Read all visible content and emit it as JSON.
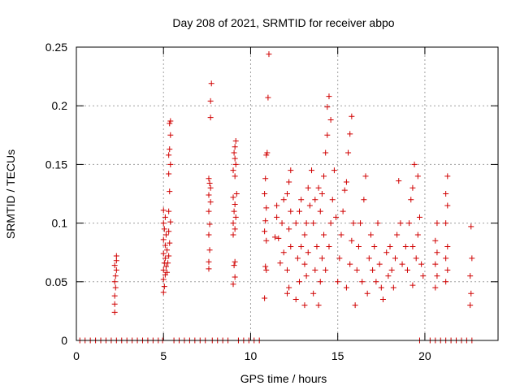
{
  "chart_data": {
    "type": "scatter",
    "title": "Day 208 of 2021, SRMTID for receiver abpo",
    "xlabel": "GPS time / hours",
    "ylabel": "SRMTID / TECUs",
    "xlim": [
      0,
      24.2
    ],
    "ylim": [
      0,
      0.25
    ],
    "xticks": [
      0,
      5,
      10,
      15,
      20
    ],
    "xtick_labels": [
      "0",
      "5",
      "10",
      "15",
      "20"
    ],
    "yticks": [
      0,
      0.05,
      0.1,
      0.15,
      0.2,
      0.25
    ],
    "ytick_labels": [
      "0",
      "0.05",
      "0.1",
      "0.15",
      "0.2",
      "0.25"
    ],
    "grid": true,
    "marker": "+",
    "color": "#d00000",
    "series": [
      {
        "name": "SRMTID",
        "points": [
          [
            0.2,
            0
          ],
          [
            0.5,
            0
          ],
          [
            0.8,
            0
          ],
          [
            1.1,
            0
          ],
          [
            1.4,
            0
          ],
          [
            1.7,
            0
          ],
          [
            2.0,
            0
          ],
          [
            2.3,
            0
          ],
          [
            2.6,
            0
          ],
          [
            2.9,
            0
          ],
          [
            3.2,
            0
          ],
          [
            3.5,
            0
          ],
          [
            3.8,
            0
          ],
          [
            4.1,
            0
          ],
          [
            4.4,
            0
          ],
          [
            4.7,
            0
          ],
          [
            4.95,
            0
          ],
          [
            5.6,
            0
          ],
          [
            5.9,
            0
          ],
          [
            6.2,
            0
          ],
          [
            6.5,
            0
          ],
          [
            6.8,
            0
          ],
          [
            7.1,
            0
          ],
          [
            7.4,
            0
          ],
          [
            7.8,
            0
          ],
          [
            8.1,
            0
          ],
          [
            8.4,
            0
          ],
          [
            8.7,
            0
          ],
          [
            9.3,
            0
          ],
          [
            9.6,
            0
          ],
          [
            9.9,
            0
          ],
          [
            10.2,
            0
          ],
          [
            10.5,
            0
          ],
          [
            19.7,
            0
          ],
          [
            20.3,
            0
          ],
          [
            20.6,
            0
          ],
          [
            20.9,
            0
          ],
          [
            21.2,
            0
          ],
          [
            21.5,
            0
          ],
          [
            21.8,
            0
          ],
          [
            22.1,
            0
          ],
          [
            22.4,
            0
          ],
          [
            22.7,
            0
          ],
          [
            2.2,
            0.024
          ],
          [
            2.2,
            0.031
          ],
          [
            2.2,
            0.038
          ],
          [
            2.25,
            0.045
          ],
          [
            2.2,
            0.05
          ],
          [
            2.25,
            0.055
          ],
          [
            2.3,
            0.06
          ],
          [
            2.2,
            0.064
          ],
          [
            2.3,
            0.068
          ],
          [
            2.3,
            0.072
          ],
          [
            5.0,
            0.041
          ],
          [
            5.05,
            0.046
          ],
          [
            5.0,
            0.052
          ],
          [
            5.1,
            0.056
          ],
          [
            5.0,
            0.06
          ],
          [
            5.15,
            0.063
          ],
          [
            5.05,
            0.066
          ],
          [
            5.1,
            0.07
          ],
          [
            5.0,
            0.074
          ],
          [
            5.2,
            0.077
          ],
          [
            5.1,
            0.081
          ],
          [
            5.0,
            0.086
          ],
          [
            5.15,
            0.09
          ],
          [
            5.05,
            0.095
          ],
          [
            5.0,
            0.1
          ],
          [
            5.1,
            0.105
          ],
          [
            5.0,
            0.111
          ],
          [
            5.3,
            0.072
          ],
          [
            5.35,
            0.083
          ],
          [
            5.3,
            0.093
          ],
          [
            5.4,
            0.101
          ],
          [
            5.3,
            0.11
          ],
          [
            5.35,
            0.127
          ],
          [
            5.3,
            0.142
          ],
          [
            5.4,
            0.15
          ],
          [
            5.3,
            0.158
          ],
          [
            5.35,
            0.163
          ],
          [
            5.4,
            0.175
          ],
          [
            5.35,
            0.185
          ],
          [
            5.4,
            0.187
          ],
          [
            5.25,
            0.066
          ],
          [
            5.2,
            0.058
          ],
          [
            7.6,
            0.061
          ],
          [
            7.6,
            0.067
          ],
          [
            7.65,
            0.077
          ],
          [
            7.6,
            0.09
          ],
          [
            7.65,
            0.099
          ],
          [
            7.6,
            0.11
          ],
          [
            7.7,
            0.118
          ],
          [
            7.6,
            0.124
          ],
          [
            7.7,
            0.13
          ],
          [
            7.65,
            0.134
          ],
          [
            7.6,
            0.138
          ],
          [
            7.7,
            0.19
          ],
          [
            7.7,
            0.204
          ],
          [
            7.75,
            0.219
          ],
          [
            9.0,
            0.048
          ],
          [
            9.1,
            0.054
          ],
          [
            9.05,
            0.064
          ],
          [
            9.1,
            0.067
          ],
          [
            9.0,
            0.09
          ],
          [
            9.1,
            0.095
          ],
          [
            9.0,
            0.1
          ],
          [
            9.15,
            0.105
          ],
          [
            9.05,
            0.11
          ],
          [
            9.1,
            0.116
          ],
          [
            9.0,
            0.122
          ],
          [
            9.2,
            0.125
          ],
          [
            9.1,
            0.14
          ],
          [
            9.0,
            0.145
          ],
          [
            9.15,
            0.15
          ],
          [
            9.1,
            0.155
          ],
          [
            9.05,
            0.16
          ],
          [
            9.1,
            0.165
          ],
          [
            9.15,
            0.17
          ],
          [
            10.8,
            0.036
          ],
          [
            10.9,
            0.06
          ],
          [
            10.85,
            0.063
          ],
          [
            10.9,
            0.085
          ],
          [
            10.8,
            0.093
          ],
          [
            10.85,
            0.102
          ],
          [
            10.9,
            0.113
          ],
          [
            10.8,
            0.125
          ],
          [
            10.85,
            0.138
          ],
          [
            10.9,
            0.158
          ],
          [
            10.95,
            0.16
          ],
          [
            11.0,
            0.207
          ],
          [
            11.05,
            0.244
          ],
          [
            11.4,
            0.088
          ],
          [
            11.6,
            0.087
          ],
          [
            11.5,
            0.105
          ],
          [
            11.5,
            0.115
          ],
          [
            11.7,
            0.066
          ],
          [
            11.9,
            0.075
          ],
          [
            11.8,
            0.1
          ],
          [
            11.9,
            0.12
          ],
          [
            12.1,
            0.04
          ],
          [
            12.2,
            0.045
          ],
          [
            12.1,
            0.06
          ],
          [
            12.3,
            0.08
          ],
          [
            12.2,
            0.095
          ],
          [
            12.3,
            0.11
          ],
          [
            12.1,
            0.125
          ],
          [
            12.2,
            0.135
          ],
          [
            12.3,
            0.145
          ],
          [
            12.6,
            0.035
          ],
          [
            12.8,
            0.05
          ],
          [
            12.7,
            0.07
          ],
          [
            12.9,
            0.08
          ],
          [
            12.6,
            0.1
          ],
          [
            12.8,
            0.11
          ],
          [
            12.9,
            0.12
          ],
          [
            13.1,
            0.03
          ],
          [
            13.2,
            0.055
          ],
          [
            13.1,
            0.065
          ],
          [
            13.3,
            0.075
          ],
          [
            13.1,
            0.09
          ],
          [
            13.2,
            0.1
          ],
          [
            13.4,
            0.115
          ],
          [
            13.3,
            0.13
          ],
          [
            13.5,
            0.145
          ],
          [
            13.6,
            0.04
          ],
          [
            13.7,
            0.06
          ],
          [
            13.8,
            0.08
          ],
          [
            13.6,
            0.1
          ],
          [
            13.7,
            0.12
          ],
          [
            13.9,
            0.13
          ],
          [
            13.9,
            0.03
          ],
          [
            14.0,
            0.05
          ],
          [
            14.1,
            0.07
          ],
          [
            14.2,
            0.09
          ],
          [
            14.0,
            0.11
          ],
          [
            14.1,
            0.125
          ],
          [
            14.2,
            0.14
          ],
          [
            14.3,
            0.16
          ],
          [
            14.4,
            0.175
          ],
          [
            14.4,
            0.199
          ],
          [
            14.5,
            0.208
          ],
          [
            14.6,
            0.188
          ],
          [
            14.3,
            0.06
          ],
          [
            14.5,
            0.08
          ],
          [
            14.6,
            0.1
          ],
          [
            14.7,
            0.12
          ],
          [
            14.8,
            0.145
          ],
          [
            14.9,
            0.105
          ],
          [
            15.0,
            0.05
          ],
          [
            15.1,
            0.07
          ],
          [
            15.2,
            0.09
          ],
          [
            15.3,
            0.11
          ],
          [
            15.4,
            0.128
          ],
          [
            15.5,
            0.135
          ],
          [
            15.6,
            0.16
          ],
          [
            15.7,
            0.176
          ],
          [
            15.8,
            0.191
          ],
          [
            15.5,
            0.045
          ],
          [
            15.7,
            0.065
          ],
          [
            15.8,
            0.085
          ],
          [
            15.9,
            0.1
          ],
          [
            16.0,
            0.03
          ],
          [
            16.1,
            0.06
          ],
          [
            16.2,
            0.08
          ],
          [
            16.3,
            0.1
          ],
          [
            16.5,
            0.12
          ],
          [
            16.6,
            0.14
          ],
          [
            16.4,
            0.05
          ],
          [
            16.7,
            0.04
          ],
          [
            16.8,
            0.07
          ],
          [
            16.9,
            0.09
          ],
          [
            17.0,
            0.06
          ],
          [
            17.1,
            0.08
          ],
          [
            17.2,
            0.05
          ],
          [
            17.3,
            0.1
          ],
          [
            17.4,
            0.065
          ],
          [
            17.5,
            0.045
          ],
          [
            17.6,
            0.035
          ],
          [
            17.8,
            0.075
          ],
          [
            17.9,
            0.055
          ],
          [
            18.0,
            0.08
          ],
          [
            18.1,
            0.06
          ],
          [
            18.2,
            0.045
          ],
          [
            18.3,
            0.07
          ],
          [
            18.4,
            0.09
          ],
          [
            18.5,
            0.136
          ],
          [
            18.6,
            0.1
          ],
          [
            18.7,
            0.065
          ],
          [
            18.9,
            0.08
          ],
          [
            19.0,
            0.06
          ],
          [
            19.1,
            0.1
          ],
          [
            19.2,
            0.12
          ],
          [
            19.3,
            0.13
          ],
          [
            19.4,
            0.15
          ],
          [
            19.3,
            0.08
          ],
          [
            19.5,
            0.07
          ],
          [
            19.6,
            0.09
          ],
          [
            19.7,
            0.105
          ],
          [
            19.8,
            0.065
          ],
          [
            19.9,
            0.055
          ],
          [
            19.3,
            0.047
          ],
          [
            19.6,
            0.14
          ],
          [
            20.6,
            0.045
          ],
          [
            20.7,
            0.055
          ],
          [
            20.6,
            0.065
          ],
          [
            20.7,
            0.075
          ],
          [
            20.6,
            0.085
          ],
          [
            20.7,
            0.1
          ],
          [
            21.2,
            0.05
          ],
          [
            21.3,
            0.06
          ],
          [
            21.2,
            0.07
          ],
          [
            21.3,
            0.08
          ],
          [
            21.2,
            0.1
          ],
          [
            21.3,
            0.115
          ],
          [
            21.2,
            0.125
          ],
          [
            21.3,
            0.14
          ],
          [
            22.6,
            0.03
          ],
          [
            22.65,
            0.04
          ],
          [
            22.6,
            0.055
          ],
          [
            22.7,
            0.07
          ],
          [
            22.65,
            0.097
          ]
        ]
      }
    ]
  }
}
